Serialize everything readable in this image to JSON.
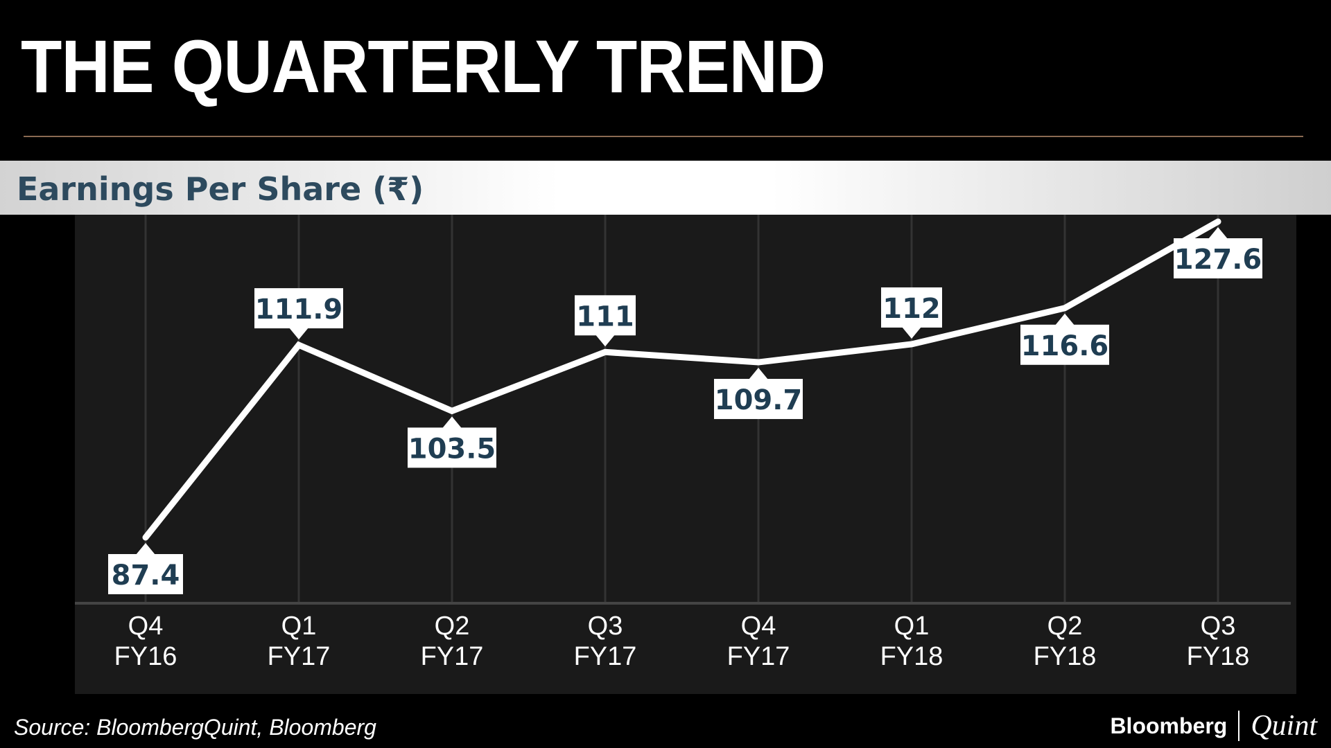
{
  "header": {
    "title": "THE QUARTERLY TREND"
  },
  "banner": {
    "label": "Earnings Per Share (₹)"
  },
  "footer": {
    "source": "Source: BloombergQuint, Bloomberg",
    "brand_primary": "Bloomberg",
    "brand_secondary": "Quint"
  },
  "colors": {
    "background": "#000000",
    "plot_background": "#1a1a1a",
    "line": "#ffffff",
    "label_box": "#ffffff",
    "label_text": "#1f3d52",
    "banner_text": "#2d4a5e",
    "rule": "#8a6a52"
  },
  "chart_data": {
    "type": "line",
    "title": "Earnings Per Share (₹)",
    "categories": [
      [
        "Q4",
        "FY16"
      ],
      [
        "Q1",
        "FY17"
      ],
      [
        "Q2",
        "FY17"
      ],
      [
        "Q3",
        "FY17"
      ],
      [
        "Q4",
        "FY17"
      ],
      [
        "Q1",
        "FY18"
      ],
      [
        "Q2",
        "FY18"
      ],
      [
        "Q3",
        "FY18"
      ]
    ],
    "series": [
      {
        "values": [
          87.4,
          111.9,
          103.5,
          111,
          109.7,
          112,
          116.6,
          127.6
        ],
        "labels": [
          "87.4",
          "111.9",
          "103.5",
          "111",
          "109.7",
          "112",
          "116.6",
          "127.6"
        ],
        "label_positions": [
          "below",
          "above",
          "below",
          "above",
          "below",
          "above",
          "below",
          "below"
        ]
      }
    ],
    "grid": "vertical",
    "data_labels": true
  }
}
